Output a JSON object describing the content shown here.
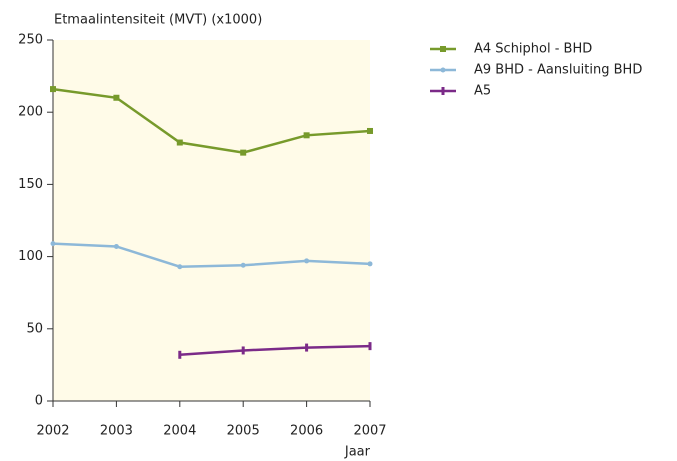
{
  "chart_data": {
    "type": "line",
    "y_label": "Etmaalintensiteit (MVT) (x1000)",
    "x_label": "Jaar",
    "x": [
      2002,
      2003,
      2004,
      2005,
      2006,
      2007
    ],
    "xlim": [
      2002,
      2007
    ],
    "xticks": [
      2002,
      2003,
      2004,
      2005,
      2006,
      2007
    ],
    "ylim": [
      0,
      250
    ],
    "yticks": [
      0,
      50,
      100,
      150,
      200,
      250
    ],
    "plot_background": "#fffbe8",
    "legend": "right",
    "series": [
      {
        "name": "A4 Schiphol - BHD",
        "color": "#779a2b",
        "marker": "square",
        "values": [
          216,
          210,
          179,
          172,
          184,
          187
        ]
      },
      {
        "name": "A9 BHD - Aansluiting BHD",
        "color": "#8db8d8",
        "marker": "circle",
        "values": [
          109,
          107,
          93,
          94,
          97,
          95
        ]
      },
      {
        "name": "A5",
        "color": "#7b2a88",
        "marker": "bar",
        "values": [
          null,
          null,
          32,
          35,
          37,
          38
        ]
      }
    ]
  }
}
